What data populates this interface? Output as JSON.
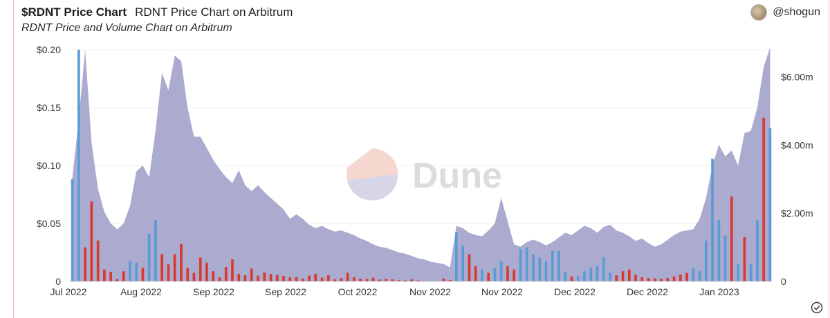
{
  "header": {
    "title": "$RDNT Price Chart",
    "subtitle": "RDNT Price Chart on Arbitrum",
    "description": "RDNT Price and Volume Chart on Arbitrum"
  },
  "user": {
    "handle": "@shogun",
    "icon": "avatar"
  },
  "watermark": {
    "text": "Dune",
    "icon": "dune-logo"
  },
  "footer": {
    "icon": "check-circle-icon"
  },
  "colors": {
    "area": "#9c9cc8",
    "volume_up": "#5b9bd5",
    "volume_down": "#d93a2f",
    "grid": "#ececec",
    "text": "#333333"
  },
  "chart_data": {
    "type": "area",
    "title": "",
    "xlabel": "",
    "ylabel": "",
    "x_tick_labels": [
      "Jul 2022",
      "Aug 2022",
      "Sep 2022",
      "Sep 2022",
      "Oct 2022",
      "Nov 2022",
      "Nov 2022",
      "Dec 2022",
      "Dec 2022",
      "Jan 2023"
    ],
    "y_left": {
      "ticks": [
        0,
        0.05,
        0.1,
        0.15,
        0.2
      ],
      "tick_labels": [
        "0",
        "$0.05",
        "$0.10",
        "$0.15",
        "$0.20"
      ],
      "range": [
        0,
        0.2
      ]
    },
    "y_right": {
      "ticks": [
        0,
        2000000,
        4000000,
        6000000
      ],
      "tick_labels": [
        "0",
        "$2.00m",
        "$4.00m",
        "$6.00m"
      ],
      "range": [
        0,
        6800000
      ]
    },
    "grid": true,
    "series": [
      {
        "type": "area",
        "axis": "left",
        "values": [
          0.09,
          0.14,
          0.2,
          0.12,
          0.08,
          0.06,
          0.05,
          0.045,
          0.05,
          0.065,
          0.095,
          0.1,
          0.09,
          0.13,
          0.18,
          0.165,
          0.195,
          0.19,
          0.15,
          0.125,
          0.125,
          0.115,
          0.105,
          0.097,
          0.09,
          0.085,
          0.096,
          0.083,
          0.078,
          0.083,
          0.077,
          0.072,
          0.067,
          0.062,
          0.054,
          0.058,
          0.054,
          0.049,
          0.046,
          0.048,
          0.045,
          0.043,
          0.044,
          0.042,
          0.04,
          0.037,
          0.035,
          0.032,
          0.03,
          0.029,
          0.027,
          0.025,
          0.024,
          0.022,
          0.02,
          0.019,
          0.017,
          0.016,
          0.015,
          0.012,
          0.048,
          0.046,
          0.042,
          0.04,
          0.039,
          0.044,
          0.05,
          0.072,
          0.052,
          0.032,
          0.03,
          0.034,
          0.036,
          0.034,
          0.031,
          0.034,
          0.038,
          0.042,
          0.04,
          0.044,
          0.048,
          0.046,
          0.042,
          0.047,
          0.049,
          0.044,
          0.042,
          0.039,
          0.035,
          0.037,
          0.033,
          0.03,
          0.032,
          0.036,
          0.04,
          0.043,
          0.044,
          0.045,
          0.054,
          0.072,
          0.1,
          0.118,
          0.108,
          0.113,
          0.1,
          0.128,
          0.13,
          0.15,
          0.185,
          0.202
        ]
      },
      {
        "type": "bar",
        "axis": "right",
        "name_up": "up",
        "name_down": "down",
        "values": [
          3000000,
          6800000,
          1000000,
          2350000,
          1200000,
          350000,
          280000,
          70000,
          300000,
          600000,
          550000,
          400000,
          1400000,
          1800000,
          800000,
          500000,
          800000,
          1100000,
          400000,
          250000,
          700000,
          550000,
          300000,
          120000,
          420000,
          650000,
          220000,
          180000,
          380000,
          170000,
          260000,
          220000,
          190000,
          160000,
          120000,
          130000,
          85000,
          170000,
          220000,
          110000,
          180000,
          60000,
          100000,
          250000,
          120000,
          80000,
          70000,
          110000,
          55000,
          75000,
          60000,
          35000,
          30000,
          60000,
          30000,
          20000,
          8000,
          5000,
          80000,
          40000,
          1450000,
          1050000,
          800000,
          450000,
          350000,
          250000,
          400000,
          600000,
          450000,
          350000,
          950000,
          1000000,
          800000,
          700000,
          600000,
          900000,
          900000,
          280000,
          150000,
          150000,
          300000,
          400000,
          450000,
          700000,
          250000,
          180000,
          300000,
          350000,
          200000,
          120000,
          100000,
          90000,
          80000,
          100000,
          150000,
          200000,
          250000,
          400000,
          300000,
          1200000,
          3600000,
          1800000,
          1350000,
          2500000,
          500000,
          1300000,
          500000,
          1800000,
          4800000,
          4500000
        ],
        "up_flags": [
          1,
          1,
          0,
          0,
          0,
          0,
          0,
          0,
          0,
          1,
          1,
          0,
          1,
          1,
          0,
          0,
          0,
          0,
          0,
          0,
          0,
          0,
          0,
          0,
          0,
          0,
          0,
          0,
          0,
          0,
          0,
          0,
          0,
          0,
          0,
          0,
          0,
          0,
          0,
          0,
          0,
          0,
          0,
          0,
          0,
          0,
          0,
          0,
          0,
          0,
          0,
          0,
          0,
          0,
          0,
          0,
          0,
          0,
          0,
          0,
          1,
          1,
          0,
          0,
          1,
          0,
          1,
          1,
          0,
          0,
          1,
          1,
          1,
          1,
          1,
          1,
          1,
          1,
          0,
          1,
          1,
          1,
          1,
          1,
          1,
          0,
          0,
          0,
          0,
          0,
          0,
          0,
          0,
          0,
          0,
          0,
          0,
          1,
          1,
          1,
          1,
          1,
          1,
          0,
          1,
          0,
          1,
          1,
          0,
          1
        ]
      }
    ]
  }
}
